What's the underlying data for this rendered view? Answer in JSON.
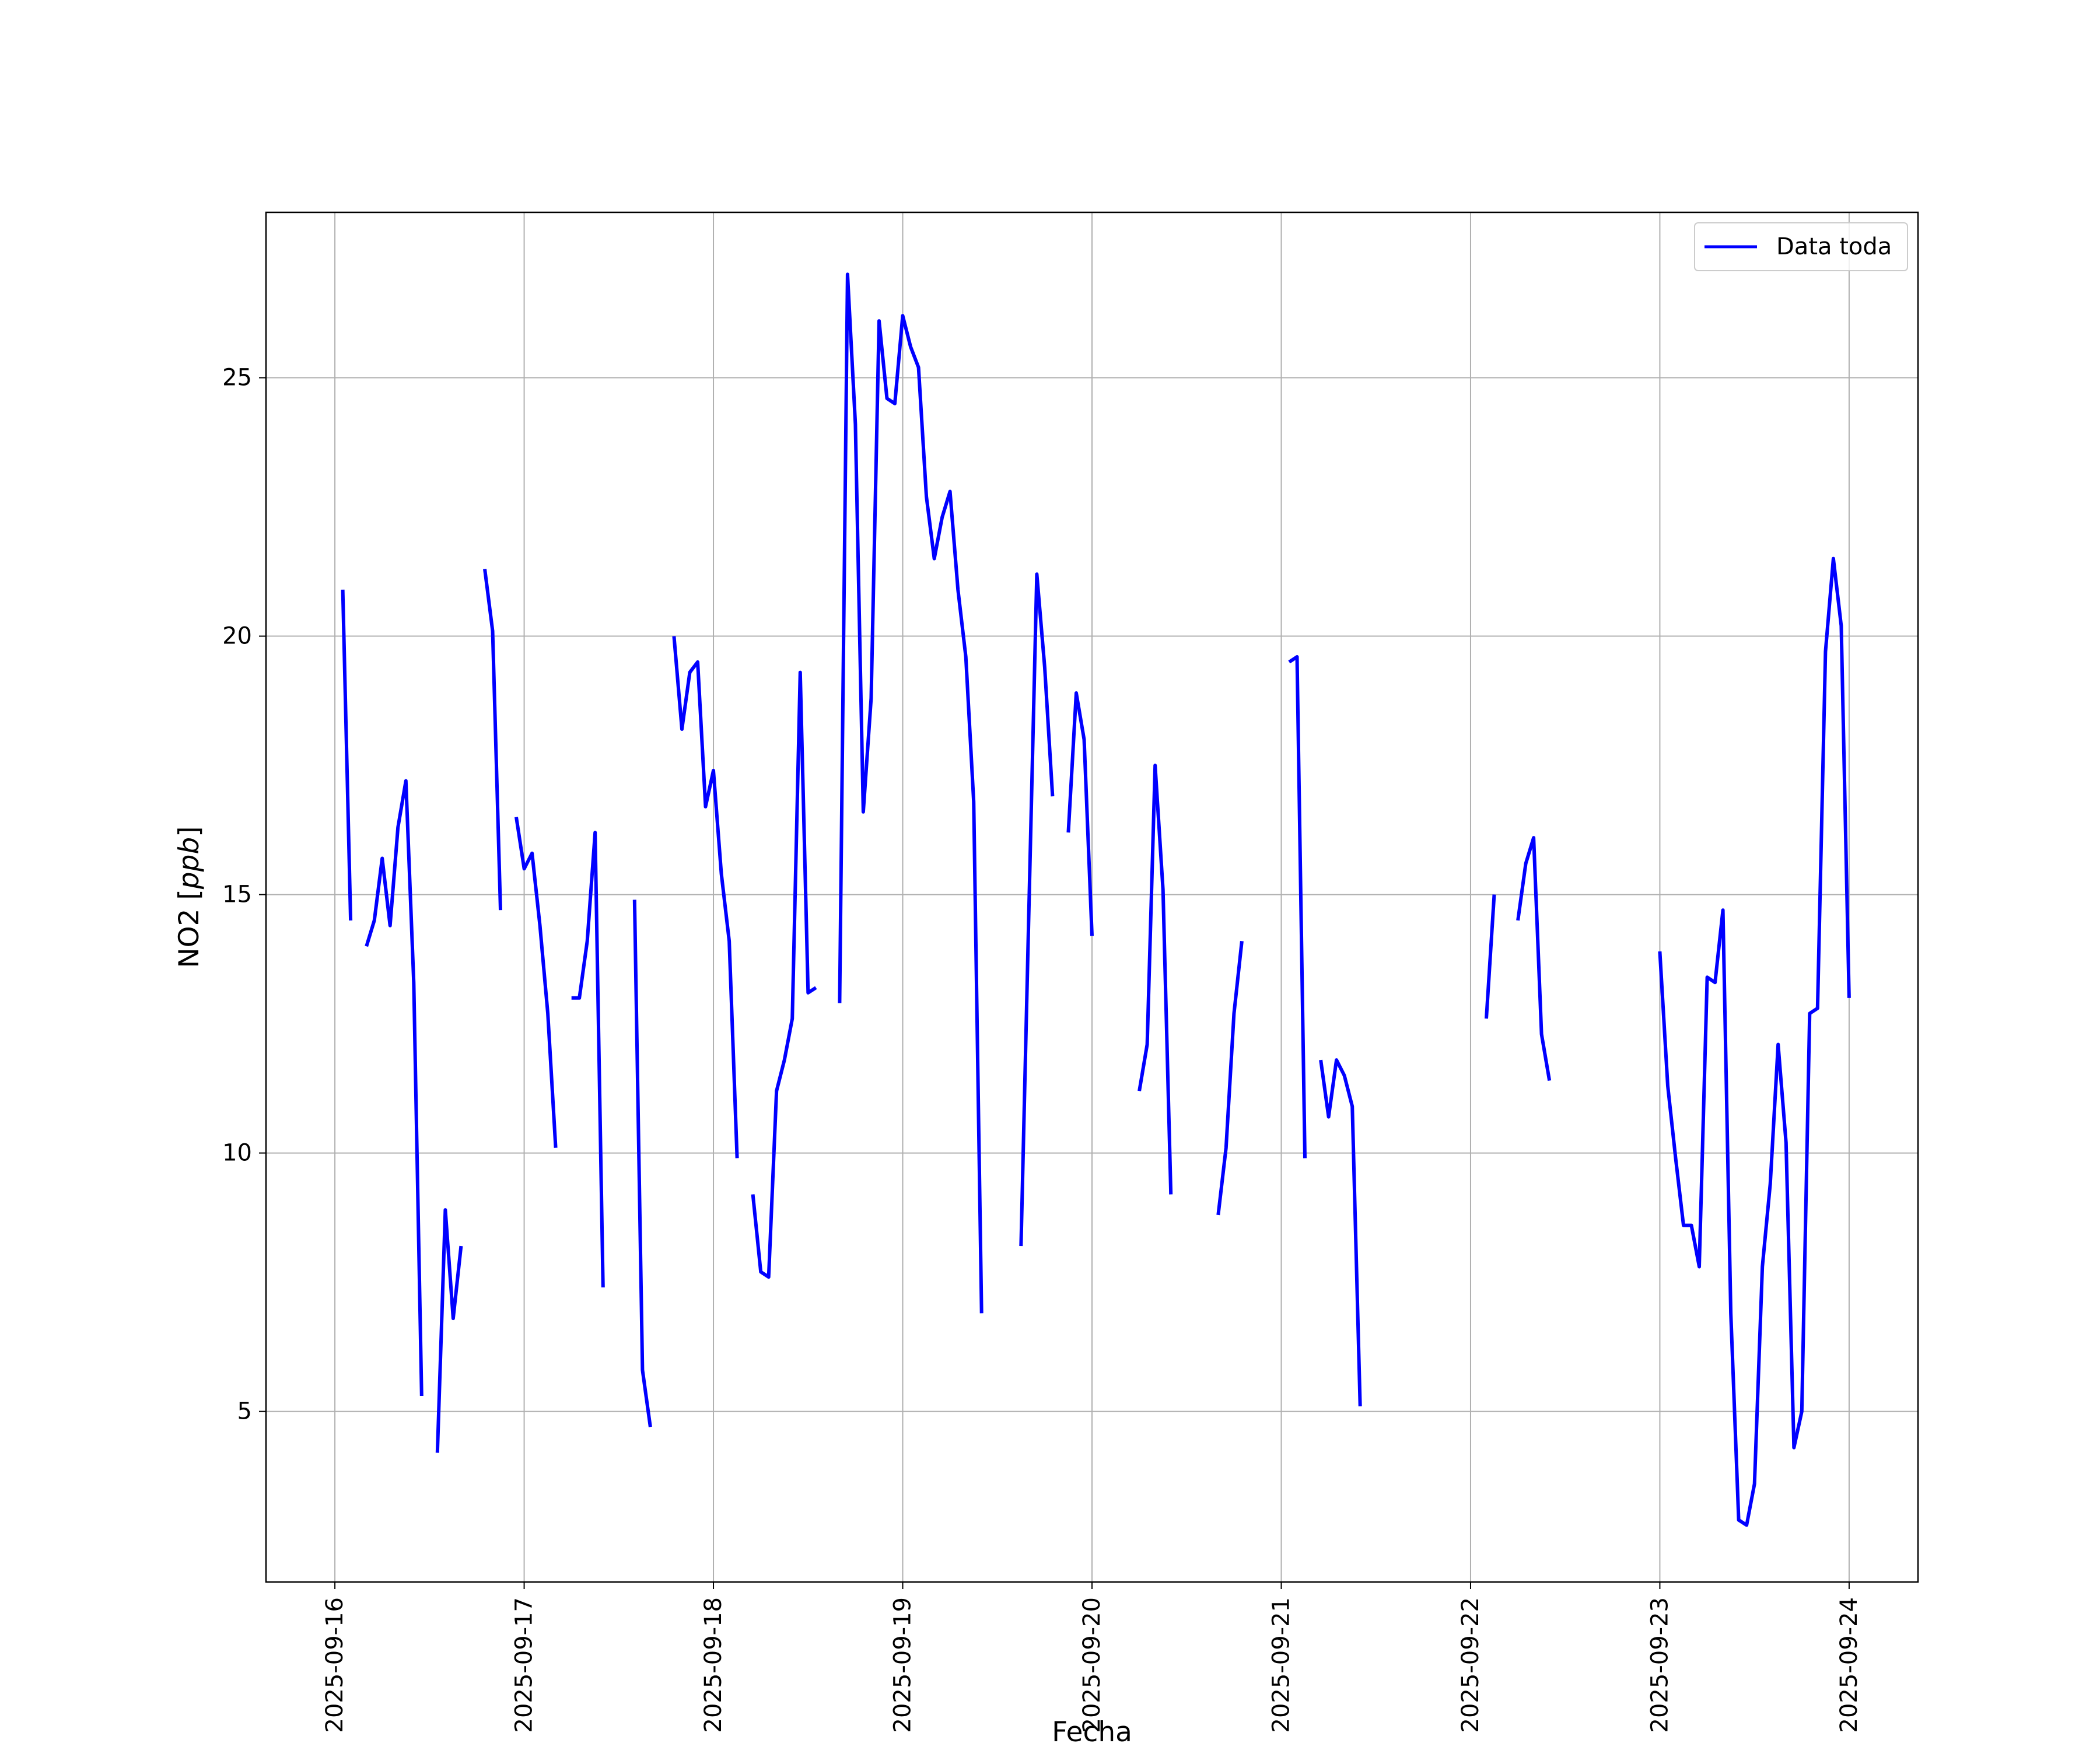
{
  "chart_data": {
    "type": "line",
    "title": "",
    "xlabel": "Fecha",
    "ylabel_prefix": "NO2 [",
    "ylabel_italic": "ppb",
    "ylabel_suffix": "]",
    "x_type": "datetime",
    "xlim": [
      "2025-09-15 15:16",
      "2025-09-24 08:44"
    ],
    "ylim": [
      1.7,
      28.2
    ],
    "xticks": [
      "2025-09-16",
      "2025-09-17",
      "2025-09-18",
      "2025-09-19",
      "2025-09-20",
      "2025-09-21",
      "2025-09-22",
      "2025-09-23",
      "2025-09-24"
    ],
    "yticks": [
      5,
      10,
      15,
      20,
      25
    ],
    "grid": true,
    "legend_position": "upper right",
    "series": [
      {
        "name": "Data toda",
        "color": "#0000ff",
        "segments": [
          [
            [
              "2025-09-16 01:00",
              20.9
            ],
            [
              "2025-09-16 02:00",
              14.5
            ]
          ],
          [
            [
              "2025-09-16 04:00",
              14.0
            ],
            [
              "2025-09-16 05:00",
              14.5
            ],
            [
              "2025-09-16 06:00",
              15.7
            ],
            [
              "2025-09-16 07:00",
              14.4
            ],
            [
              "2025-09-16 08:00",
              16.3
            ],
            [
              "2025-09-16 09:00",
              17.2
            ],
            [
              "2025-09-16 10:00",
              13.3
            ],
            [
              "2025-09-16 11:00",
              5.3
            ]
          ],
          [
            [
              "2025-09-16 13:00",
              4.2
            ],
            [
              "2025-09-16 14:00",
              8.9
            ],
            [
              "2025-09-16 15:00",
              6.8
            ],
            [
              "2025-09-16 16:00",
              8.2
            ]
          ],
          [
            [
              "2025-09-16 19:00",
              21.3
            ],
            [
              "2025-09-16 20:00",
              20.1
            ],
            [
              "2025-09-16 21:00",
              14.7
            ]
          ],
          [
            [
              "2025-09-16 23:00",
              16.5
            ],
            [
              "2025-09-17 00:00",
              15.5
            ],
            [
              "2025-09-17 01:00",
              15.8
            ],
            [
              "2025-09-17 02:00",
              14.4
            ],
            [
              "2025-09-17 03:00",
              12.7
            ],
            [
              "2025-09-17 04:00",
              10.1
            ]
          ],
          [
            [
              "2025-09-17 06:00",
              13.0
            ],
            [
              "2025-09-17 07:00",
              13.0
            ],
            [
              "2025-09-17 08:00",
              14.1
            ],
            [
              "2025-09-17 09:00",
              16.2
            ],
            [
              "2025-09-17 10:00",
              7.4
            ]
          ],
          [
            [
              "2025-09-17 14:00",
              14.9
            ],
            [
              "2025-09-17 15:00",
              5.8
            ],
            [
              "2025-09-17 16:00",
              4.7
            ]
          ],
          [
            [
              "2025-09-17 19:00",
              20.0
            ],
            [
              "2025-09-17 20:00",
              18.2
            ],
            [
              "2025-09-17 21:00",
              19.3
            ],
            [
              "2025-09-17 22:00",
              19.5
            ],
            [
              "2025-09-17 23:00",
              16.7
            ],
            [
              "2025-09-18 00:00",
              17.4
            ],
            [
              "2025-09-18 01:00",
              15.4
            ],
            [
              "2025-09-18 02:00",
              14.1
            ],
            [
              "2025-09-18 03:00",
              9.9
            ]
          ],
          [
            [
              "2025-09-18 05:00",
              9.2
            ],
            [
              "2025-09-18 06:00",
              7.7
            ],
            [
              "2025-09-18 07:00",
              7.6
            ],
            [
              "2025-09-18 08:00",
              11.2
            ],
            [
              "2025-09-18 09:00",
              11.8
            ],
            [
              "2025-09-18 10:00",
              12.6
            ],
            [
              "2025-09-18 11:00",
              19.3
            ],
            [
              "2025-09-18 12:00",
              13.1
            ],
            [
              "2025-09-18 13:00",
              13.2
            ]
          ],
          [
            [
              "2025-09-18 16:00",
              12.9
            ],
            [
              "2025-09-18 17:00",
              27.0
            ],
            [
              "2025-09-18 18:00",
              24.1
            ],
            [
              "2025-09-18 19:00",
              16.6
            ],
            [
              "2025-09-18 20:00",
              18.8
            ],
            [
              "2025-09-18 21:00",
              26.1
            ],
            [
              "2025-09-18 22:00",
              24.6
            ],
            [
              "2025-09-18 23:00",
              24.5
            ],
            [
              "2025-09-19 00:00",
              26.2
            ],
            [
              "2025-09-19 01:00",
              25.6
            ],
            [
              "2025-09-19 02:00",
              25.2
            ],
            [
              "2025-09-19 03:00",
              22.7
            ],
            [
              "2025-09-19 04:00",
              21.5
            ],
            [
              "2025-09-19 05:00",
              22.3
            ],
            [
              "2025-09-19 06:00",
              22.8
            ],
            [
              "2025-09-19 07:00",
              20.9
            ],
            [
              "2025-09-19 08:00",
              19.6
            ],
            [
              "2025-09-19 09:00",
              16.8
            ],
            [
              "2025-09-19 10:00",
              6.9
            ]
          ],
          [
            [
              "2025-09-19 15:00",
              8.2
            ],
            [
              "2025-09-19 16:00",
              14.7
            ],
            [
              "2025-09-19 17:00",
              21.2
            ],
            [
              "2025-09-19 18:00",
              19.4
            ],
            [
              "2025-09-19 19:00",
              16.9
            ]
          ],
          [
            [
              "2025-09-19 21:00",
              16.2
            ],
            [
              "2025-09-19 22:00",
              18.9
            ],
            [
              "2025-09-19 23:00",
              18.0
            ],
            [
              "2025-09-20 00:00",
              14.2
            ]
          ],
          [
            [
              "2025-09-20 06:00",
              11.2
            ],
            [
              "2025-09-20 07:00",
              12.1
            ],
            [
              "2025-09-20 08:00",
              17.5
            ],
            [
              "2025-09-20 09:00",
              15.1
            ],
            [
              "2025-09-20 10:00",
              9.2
            ]
          ],
          [
            [
              "2025-09-20 16:00",
              8.8
            ],
            [
              "2025-09-20 17:00",
              10.1
            ],
            [
              "2025-09-20 18:00",
              12.7
            ],
            [
              "2025-09-20 19:00",
              14.1
            ]
          ],
          [
            [
              "2025-09-21 01:00",
              19.5
            ],
            [
              "2025-09-21 02:00",
              19.6
            ],
            [
              "2025-09-21 03:00",
              9.9
            ]
          ],
          [
            [
              "2025-09-21 05:00",
              11.8
            ],
            [
              "2025-09-21 06:00",
              10.7
            ],
            [
              "2025-09-21 07:00",
              11.8
            ],
            [
              "2025-09-21 08:00",
              11.5
            ],
            [
              "2025-09-21 09:00",
              10.9
            ],
            [
              "2025-09-21 10:00",
              5.1
            ]
          ],
          [
            [
              "2025-09-22 02:00",
              12.6
            ],
            [
              "2025-09-22 03:00",
              15.0
            ]
          ],
          [
            [
              "2025-09-22 06:00",
              14.5
            ],
            [
              "2025-09-22 07:00",
              15.6
            ],
            [
              "2025-09-22 08:00",
              16.1
            ],
            [
              "2025-09-22 09:00",
              12.3
            ],
            [
              "2025-09-22 10:00",
              11.4
            ]
          ],
          [
            [
              "2025-09-23 00:00",
              13.9
            ],
            [
              "2025-09-23 01:00",
              11.3
            ],
            [
              "2025-09-23 02:00",
              9.9
            ],
            [
              "2025-09-23 03:00",
              8.6
            ],
            [
              "2025-09-23 04:00",
              8.6
            ],
            [
              "2025-09-23 05:00",
              7.8
            ],
            [
              "2025-09-23 06:00",
              13.4
            ],
            [
              "2025-09-23 07:00",
              13.3
            ],
            [
              "2025-09-23 08:00",
              14.7
            ],
            [
              "2025-09-23 09:00",
              6.9
            ],
            [
              "2025-09-23 10:00",
              2.9
            ],
            [
              "2025-09-23 11:00",
              2.8
            ],
            [
              "2025-09-23 12:00",
              3.6
            ],
            [
              "2025-09-23 13:00",
              7.8
            ],
            [
              "2025-09-23 14:00",
              9.4
            ],
            [
              "2025-09-23 15:00",
              12.1
            ],
            [
              "2025-09-23 16:00",
              10.2
            ],
            [
              "2025-09-23 17:00",
              4.3
            ],
            [
              "2025-09-23 18:00",
              5.0
            ],
            [
              "2025-09-23 19:00",
              12.7
            ],
            [
              "2025-09-23 20:00",
              12.8
            ],
            [
              "2025-09-23 21:00",
              19.7
            ],
            [
              "2025-09-23 22:00",
              21.5
            ],
            [
              "2025-09-23 23:00",
              20.2
            ],
            [
              "2025-09-24 00:00",
              13.0
            ]
          ]
        ]
      }
    ]
  }
}
